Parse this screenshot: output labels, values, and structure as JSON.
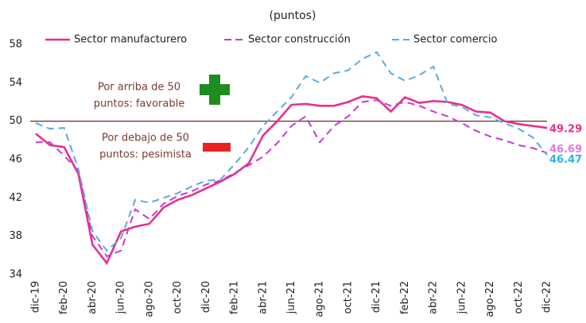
{
  "chart_data": {
    "type": "line",
    "title": "(puntos)",
    "categories": [
      "dic-19",
      null,
      "feb-20",
      null,
      "abr-20",
      null,
      "jun-20",
      null,
      "ago-20",
      null,
      "oct-20",
      null,
      "dic-20",
      null,
      "feb-21",
      null,
      "abr-21",
      null,
      "jun-21",
      null,
      "ago-21",
      null,
      "oct-21",
      null,
      "dic-21",
      null,
      "feb-22",
      null,
      "abr-22",
      null,
      "jun-22",
      null,
      "ago-22",
      null,
      "oct-22",
      null,
      "dic-22"
    ],
    "series": [
      {
        "name": "Sector manufacturero",
        "color": "#e8308c",
        "dash": "solid",
        "values": [
          48.7,
          47.5,
          47.3,
          44.5,
          37.1,
          35.2,
          38.5,
          39.0,
          39.3,
          41.0,
          41.8,
          42.3,
          43.0,
          43.7,
          44.5,
          45.6,
          48.5,
          50.0,
          51.7,
          51.8,
          51.6,
          51.6,
          52.0,
          52.6,
          52.4,
          51.0,
          52.5,
          51.9,
          52.1,
          52.0,
          51.7,
          51.0,
          50.9,
          50.0,
          49.7,
          49.5,
          49.29
        ]
      },
      {
        "name": "Sector construcción",
        "color": "#c53ad8",
        "dash": "dashed",
        "label_color": "#e07be0",
        "values": [
          47.8,
          47.8,
          46.4,
          44.8,
          38.0,
          35.9,
          36.5,
          40.8,
          39.8,
          41.4,
          42.2,
          42.7,
          43.4,
          43.8,
          44.6,
          45.4,
          46.3,
          47.7,
          49.5,
          50.5,
          47.8,
          49.5,
          50.5,
          52.0,
          52.2,
          51.6,
          52.0,
          51.6,
          51.0,
          50.5,
          49.8,
          49.0,
          48.4,
          48.0,
          47.5,
          47.2,
          46.69
        ]
      },
      {
        "name": "Sector comercio",
        "color": "#5aa9e6",
        "dash": "dashed",
        "label_color": "#2bb3ea",
        "values": [
          49.8,
          49.2,
          49.3,
          45.0,
          38.5,
          36.5,
          37.8,
          41.8,
          41.5,
          42.0,
          42.5,
          43.2,
          43.8,
          43.9,
          45.5,
          47.3,
          49.5,
          51.0,
          52.5,
          54.7,
          54.0,
          55.0,
          55.3,
          56.5,
          57.2,
          55.0,
          54.2,
          54.8,
          55.7,
          51.8,
          51.5,
          50.6,
          50.4,
          49.8,
          49.2,
          48.3,
          46.47
        ]
      }
    ],
    "ylim": [
      34,
      58
    ],
    "yticks": [
      34,
      38,
      42,
      46,
      50,
      54,
      58
    ],
    "reference_line": {
      "value": 50,
      "color": "#7a3b2e"
    },
    "annotations": [
      {
        "lines": [
          "Por arriba de 50",
          "puntos: favorable"
        ]
      },
      {
        "lines": [
          "Por debajo de 50",
          "puntos: pesimista"
        ]
      }
    ]
  }
}
